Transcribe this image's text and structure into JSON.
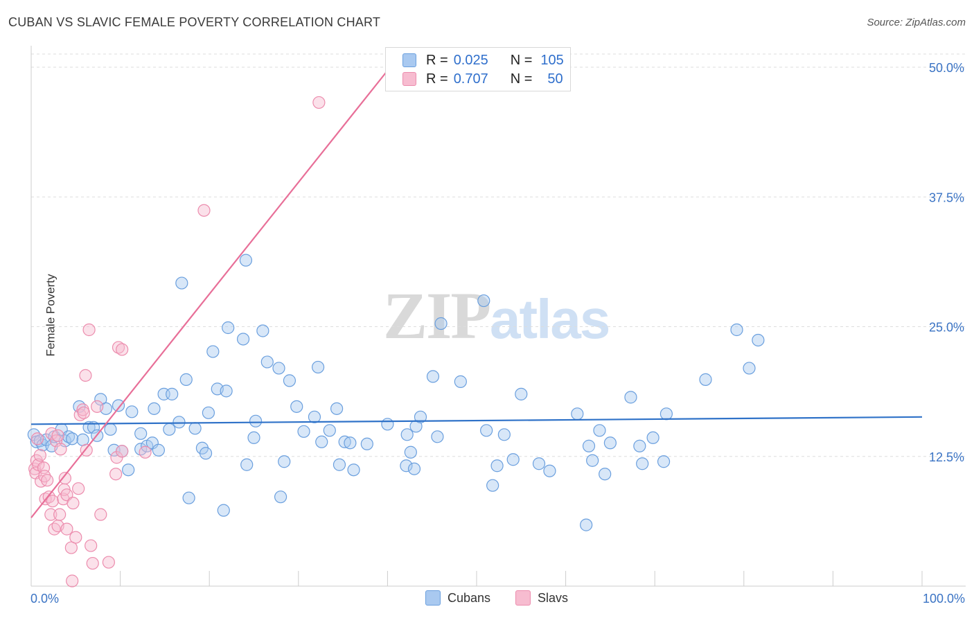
{
  "title": "CUBAN VS SLAVIC FEMALE POVERTY CORRELATION CHART",
  "source": "Source: ZipAtlas.com",
  "watermark": {
    "zip": "ZIP",
    "atlas": "atlas"
  },
  "legend_inset": {
    "rows": [
      {
        "r_label": "R =",
        "r_value": "0.025",
        "n_label": "N =",
        "n_value": "105"
      },
      {
        "r_label": "R =",
        "r_value": "0.707",
        "n_label": "N =",
        "n_value": "50"
      }
    ]
  },
  "legend_bottom": [
    "Cubans",
    "Slavs"
  ],
  "colors": {
    "cubans_fill": "#a9c9f0",
    "cubans_stroke": "#6a9fde",
    "cubans_line": "#2f72c8",
    "slavs_fill": "#f7bcd0",
    "slavs_stroke": "#ec8cad",
    "slavs_line": "#e86f98",
    "grid": "#dddddd",
    "axis_text": "#3a73c4"
  },
  "chart_data": {
    "type": "scatter",
    "title": "CUBAN VS SLAVIC FEMALE POVERTY CORRELATION CHART",
    "xlabel": "",
    "ylabel": "Female Poverty",
    "xlim": [
      0,
      100
    ],
    "ylim": [
      0,
      50
    ],
    "x_tick_labels": [
      "0.0%",
      "100.0%"
    ],
    "y_ticks": [
      12.5,
      25.0,
      37.5,
      50.0
    ],
    "y_tick_labels": [
      "12.5%",
      "25.0%",
      "37.5%",
      "50.0%"
    ],
    "grid": true,
    "legend_placement": "bottom",
    "series": [
      {
        "name": "Cubans",
        "r": 0.025,
        "n": 105,
        "trend": [
          [
            0,
            15.6
          ],
          [
            100,
            16.3
          ]
        ],
        "points": [
          [
            0.3,
            14.6
          ],
          [
            0.6,
            13.9
          ],
          [
            1.0,
            14.0
          ],
          [
            1.3,
            13.6
          ],
          [
            1.7,
            14.1
          ],
          [
            2.3,
            13.5
          ],
          [
            2.6,
            14.4
          ],
          [
            3.4,
            15.1
          ],
          [
            3.8,
            14.0
          ],
          [
            4.2,
            14.4
          ],
          [
            4.6,
            14.2
          ],
          [
            5.8,
            14.1
          ],
          [
            5.4,
            17.3
          ],
          [
            6.5,
            15.3
          ],
          [
            7.0,
            15.3
          ],
          [
            7.4,
            14.5
          ],
          [
            7.8,
            18.0
          ],
          [
            8.4,
            17.1
          ],
          [
            8.9,
            15.1
          ],
          [
            9.3,
            13.1
          ],
          [
            9.8,
            17.4
          ],
          [
            10.2,
            13.0
          ],
          [
            10.9,
            11.2
          ],
          [
            11.3,
            16.8
          ],
          [
            12.3,
            14.7
          ],
          [
            12.3,
            13.2
          ],
          [
            13.0,
            13.5
          ],
          [
            13.6,
            13.8
          ],
          [
            13.8,
            17.1
          ],
          [
            14.3,
            13.1
          ],
          [
            14.9,
            18.5
          ],
          [
            15.5,
            15.1
          ],
          [
            15.8,
            18.5
          ],
          [
            16.6,
            15.8
          ],
          [
            16.9,
            29.2
          ],
          [
            17.4,
            19.9
          ],
          [
            17.7,
            8.5
          ],
          [
            18.4,
            15.2
          ],
          [
            19.2,
            13.3
          ],
          [
            19.6,
            12.8
          ],
          [
            19.9,
            16.7
          ],
          [
            20.4,
            22.6
          ],
          [
            20.9,
            19.0
          ],
          [
            21.6,
            7.3
          ],
          [
            21.9,
            18.8
          ],
          [
            22.1,
            24.9
          ],
          [
            23.8,
            23.8
          ],
          [
            24.1,
            31.4
          ],
          [
            24.2,
            11.7
          ],
          [
            25.0,
            14.3
          ],
          [
            25.2,
            15.9
          ],
          [
            26.0,
            24.6
          ],
          [
            26.5,
            21.6
          ],
          [
            27.8,
            21.0
          ],
          [
            28.0,
            8.6
          ],
          [
            28.4,
            12.0
          ],
          [
            29.0,
            19.8
          ],
          [
            29.8,
            17.3
          ],
          [
            30.6,
            14.9
          ],
          [
            31.8,
            16.3
          ],
          [
            32.2,
            21.1
          ],
          [
            32.6,
            13.9
          ],
          [
            33.5,
            15.0
          ],
          [
            34.3,
            17.1
          ],
          [
            34.6,
            11.7
          ],
          [
            35.2,
            13.9
          ],
          [
            35.8,
            13.8
          ],
          [
            36.2,
            11.2
          ],
          [
            37.7,
            13.7
          ],
          [
            40.0,
            15.6
          ],
          [
            42.1,
            11.6
          ],
          [
            42.2,
            14.6
          ],
          [
            42.6,
            12.9
          ],
          [
            43.0,
            11.3
          ],
          [
            43.2,
            15.4
          ],
          [
            43.7,
            16.3
          ],
          [
            45.1,
            20.2
          ],
          [
            45.6,
            14.4
          ],
          [
            46.0,
            25.3
          ],
          [
            48.2,
            19.7
          ],
          [
            50.8,
            27.5
          ],
          [
            51.1,
            15.0
          ],
          [
            51.8,
            9.7
          ],
          [
            52.3,
            11.6
          ],
          [
            53.1,
            14.6
          ],
          [
            54.1,
            12.2
          ],
          [
            55.0,
            18.5
          ],
          [
            57.0,
            11.8
          ],
          [
            58.2,
            11.1
          ],
          [
            61.3,
            16.6
          ],
          [
            62.3,
            5.9
          ],
          [
            62.6,
            13.5
          ],
          [
            63.0,
            12.1
          ],
          [
            63.8,
            15.0
          ],
          [
            64.4,
            10.8
          ],
          [
            65.0,
            13.8
          ],
          [
            67.3,
            18.2
          ],
          [
            68.3,
            13.5
          ],
          [
            68.6,
            11.8
          ],
          [
            69.8,
            14.3
          ],
          [
            71.0,
            12.0
          ],
          [
            71.3,
            16.6
          ],
          [
            75.7,
            19.9
          ],
          [
            79.2,
            24.7
          ],
          [
            80.6,
            21.0
          ],
          [
            81.6,
            23.7
          ]
        ]
      },
      {
        "name": "Slavs",
        "r": 0.707,
        "n": 50,
        "trend": [
          [
            0,
            6.6
          ],
          [
            40.3,
            50.0
          ]
        ],
        "points": [
          [
            0.4,
            11.3
          ],
          [
            0.5,
            10.9
          ],
          [
            0.6,
            12.1
          ],
          [
            0.7,
            14.2
          ],
          [
            0.8,
            11.7
          ],
          [
            1.1,
            10.1
          ],
          [
            1.4,
            11.4
          ],
          [
            1.5,
            10.6
          ],
          [
            1.6,
            8.4
          ],
          [
            1.8,
            10.2
          ],
          [
            2.0,
            8.6
          ],
          [
            2.2,
            6.9
          ],
          [
            2.3,
            14.7
          ],
          [
            2.4,
            8.2
          ],
          [
            2.6,
            5.5
          ],
          [
            2.8,
            14.0
          ],
          [
            3.0,
            14.5
          ],
          [
            3.0,
            5.8
          ],
          [
            3.2,
            6.9
          ],
          [
            3.3,
            13.2
          ],
          [
            3.6,
            8.4
          ],
          [
            3.7,
            9.3
          ],
          [
            3.8,
            10.4
          ],
          [
            4.0,
            5.5
          ],
          [
            4.0,
            8.8
          ],
          [
            4.5,
            3.7
          ],
          [
            4.6,
            0.5
          ],
          [
            4.7,
            8.0
          ],
          [
            5.0,
            4.7
          ],
          [
            5.3,
            9.4
          ],
          [
            5.5,
            16.5
          ],
          [
            5.8,
            17.0
          ],
          [
            5.9,
            16.7
          ],
          [
            6.1,
            20.3
          ],
          [
            6.2,
            13.1
          ],
          [
            6.5,
            24.7
          ],
          [
            6.7,
            3.9
          ],
          [
            6.9,
            2.2
          ],
          [
            7.4,
            17.3
          ],
          [
            7.8,
            6.9
          ],
          [
            8.7,
            2.3
          ],
          [
            9.5,
            10.8
          ],
          [
            9.6,
            12.4
          ],
          [
            9.8,
            23.0
          ],
          [
            10.2,
            13.0
          ],
          [
            10.2,
            22.8
          ],
          [
            12.8,
            12.9
          ],
          [
            19.4,
            36.2
          ],
          [
            32.3,
            46.6
          ],
          [
            1.0,
            12.6
          ]
        ]
      }
    ]
  }
}
